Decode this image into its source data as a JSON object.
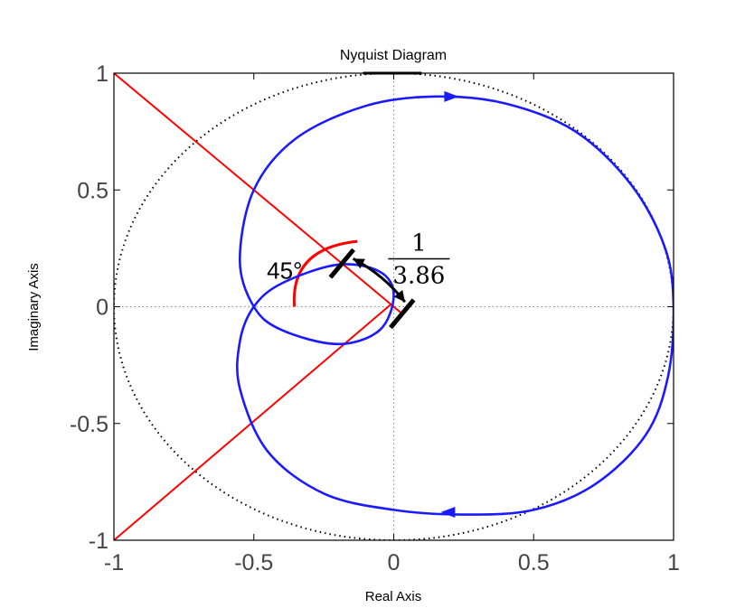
{
  "chart_data": {
    "type": "line",
    "title": "Nyquist Diagram",
    "xlabel": "Real Axis",
    "ylabel": "Imaginary Axis",
    "xlim": [
      -1,
      1
    ],
    "ylim": [
      -1,
      1
    ],
    "x_ticks": [
      "-1",
      "-0.5",
      "0",
      "0.5",
      "1"
    ],
    "y_ticks": [
      "1",
      "0.5",
      "0",
      "-0.5",
      "-1"
    ],
    "x_tick_values": [
      -1,
      -0.5,
      0,
      0.5,
      1
    ],
    "y_tick_values": [
      1,
      0.5,
      0,
      -0.5,
      -1
    ],
    "grid": "dotted zero lines",
    "colors": {
      "nyquist_curve": "#1a1aff",
      "guide_lines": "#ff0000",
      "unit_circle": "#000000",
      "marker": "#000000"
    },
    "series": [
      {
        "type": "closed-curve",
        "points": [
          [
            1.0,
            0.0
          ],
          [
            0.98,
            -0.3
          ],
          [
            0.9,
            -0.55
          ],
          [
            0.72,
            -0.76
          ],
          [
            0.5,
            -0.87
          ],
          [
            0.25,
            -0.89
          ],
          [
            0.0,
            -0.87
          ],
          [
            -0.25,
            -0.8
          ],
          [
            -0.45,
            -0.62
          ],
          [
            -0.55,
            -0.35
          ],
          [
            -0.55,
            -0.15
          ],
          [
            -0.5,
            0.0
          ],
          [
            -0.4,
            0.1
          ],
          [
            -0.2,
            0.18
          ],
          [
            -0.05,
            0.15
          ],
          [
            0.0,
            0.05
          ],
          [
            -0.05,
            -0.1
          ],
          [
            -0.2,
            -0.16
          ],
          [
            -0.4,
            -0.1
          ],
          [
            -0.5,
            0.0
          ],
          [
            -0.55,
            0.2
          ],
          [
            -0.5,
            0.5
          ],
          [
            -0.35,
            0.72
          ],
          [
            -0.1,
            0.86
          ],
          [
            0.15,
            0.9
          ],
          [
            0.4,
            0.87
          ],
          [
            0.65,
            0.75
          ],
          [
            0.85,
            0.52
          ],
          [
            0.97,
            0.25
          ],
          [
            1.0,
            0.0
          ]
        ]
      },
      {
        "type": "unit-circle",
        "center": [
          0,
          0
        ],
        "radius": 1
      }
    ],
    "guide_lines": [
      {
        "from": [
          -1,
          1
        ],
        "to": [
          0.03,
          -0.03
        ]
      },
      {
        "from": [
          -1,
          -1
        ],
        "to": [
          -0.01,
          0.01
        ]
      }
    ],
    "angle_marker": {
      "label": "45°",
      "center": [
        -0.25,
        0.25
      ],
      "radius": 0.3536
    },
    "distance_marker": {
      "label_numerator": "1",
      "label_denominator": "3.86",
      "from": [
        -0.185,
        0.185
      ],
      "to": [
        0.03,
        -0.03
      ]
    },
    "arrows": [
      {
        "at": [
          0.2,
          0.9
        ],
        "direction": "right"
      },
      {
        "at": [
          0.2,
          -0.88
        ],
        "direction": "left"
      }
    ]
  }
}
